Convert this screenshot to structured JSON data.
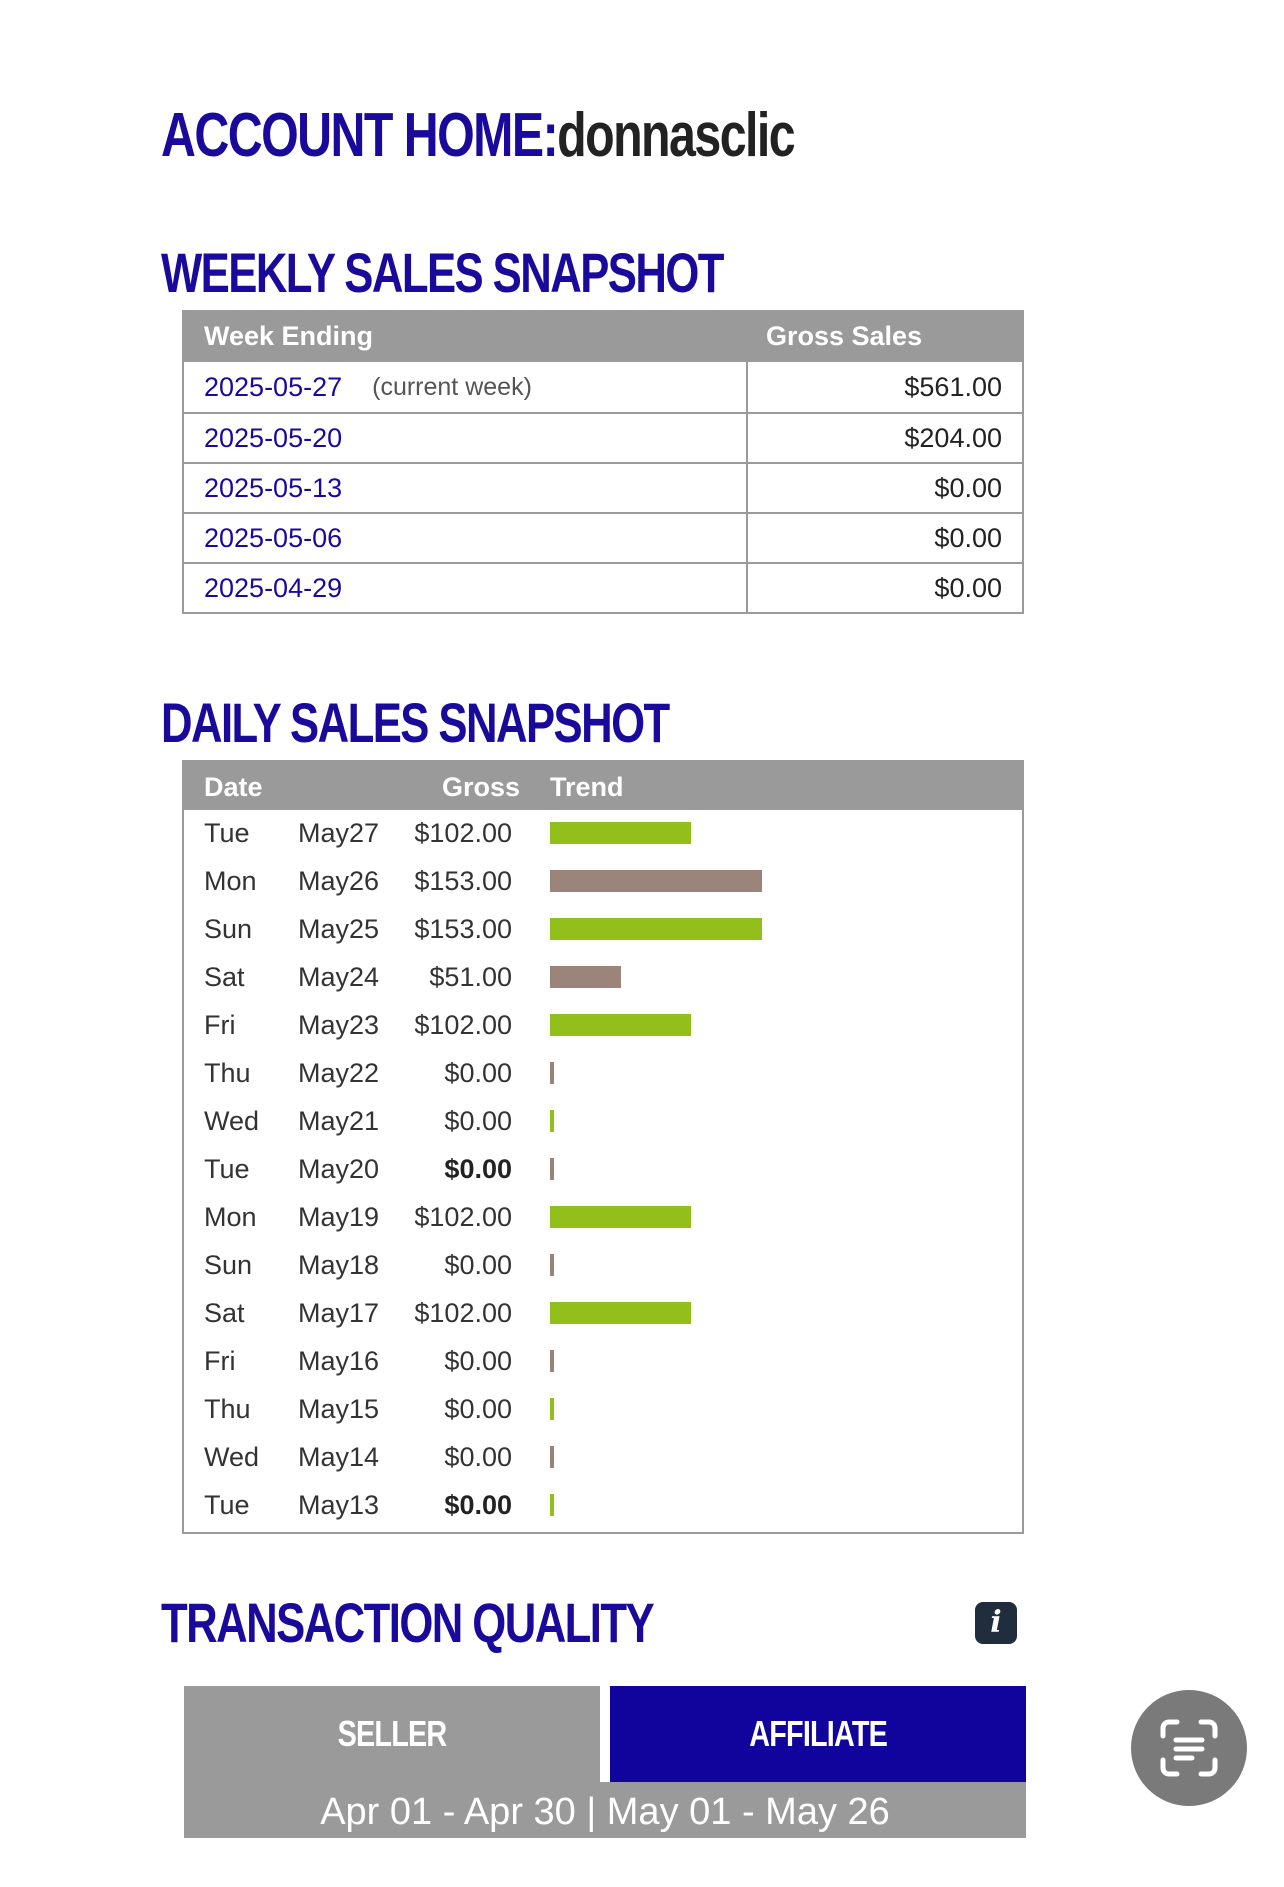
{
  "account": {
    "title_prefix": "ACCOUNT HOME:",
    "username": "donnasclic"
  },
  "weekly": {
    "heading": "WEEKLY SALES SNAPSHOT",
    "col_week": "Week Ending",
    "col_gross": "Gross Sales",
    "rows": [
      {
        "date": "2025-05-27",
        "note": "(current week)",
        "gross": "$561.00"
      },
      {
        "date": "2025-05-20",
        "note": "",
        "gross": "$204.00"
      },
      {
        "date": "2025-05-13",
        "note": "",
        "gross": "$0.00"
      },
      {
        "date": "2025-05-06",
        "note": "",
        "gross": "$0.00"
      },
      {
        "date": "2025-04-29",
        "note": "",
        "gross": "$0.00"
      }
    ]
  },
  "daily": {
    "heading": "DAILY SALES SNAPSHOT",
    "col_date": "Date",
    "col_gross": "Gross",
    "col_trend": "Trend",
    "trend_max": 153,
    "colors": {
      "green": "#93bf1b",
      "taupe": "#9b857a"
    },
    "rows": [
      {
        "dow": "Tue",
        "md": "May27",
        "gross": "$102.00",
        "value": 102,
        "color": "green",
        "bold": false
      },
      {
        "dow": "Mon",
        "md": "May26",
        "gross": "$153.00",
        "value": 153,
        "color": "taupe",
        "bold": false
      },
      {
        "dow": "Sun",
        "md": "May25",
        "gross": "$153.00",
        "value": 153,
        "color": "green",
        "bold": false
      },
      {
        "dow": "Sat",
        "md": "May24",
        "gross": "$51.00",
        "value": 51,
        "color": "taupe",
        "bold": false
      },
      {
        "dow": "Fri",
        "md": "May23",
        "gross": "$102.00",
        "value": 102,
        "color": "green",
        "bold": false
      },
      {
        "dow": "Thu",
        "md": "May22",
        "gross": "$0.00",
        "value": 0,
        "color": "taupe",
        "bold": false
      },
      {
        "dow": "Wed",
        "md": "May21",
        "gross": "$0.00",
        "value": 0,
        "color": "green",
        "bold": false
      },
      {
        "dow": "Tue",
        "md": "May20",
        "gross": "$0.00",
        "value": 0,
        "color": "taupe",
        "bold": true
      },
      {
        "dow": "Mon",
        "md": "May19",
        "gross": "$102.00",
        "value": 102,
        "color": "green",
        "bold": false
      },
      {
        "dow": "Sun",
        "md": "May18",
        "gross": "$0.00",
        "value": 0,
        "color": "taupe",
        "bold": false
      },
      {
        "dow": "Sat",
        "md": "May17",
        "gross": "$102.00",
        "value": 102,
        "color": "green",
        "bold": false
      },
      {
        "dow": "Fri",
        "md": "May16",
        "gross": "$0.00",
        "value": 0,
        "color": "taupe",
        "bold": false
      },
      {
        "dow": "Thu",
        "md": "May15",
        "gross": "$0.00",
        "value": 0,
        "color": "green",
        "bold": false
      },
      {
        "dow": "Wed",
        "md": "May14",
        "gross": "$0.00",
        "value": 0,
        "color": "taupe",
        "bold": false
      },
      {
        "dow": "Tue",
        "md": "May13",
        "gross": "$0.00",
        "value": 0,
        "color": "green",
        "bold": true
      }
    ]
  },
  "quality": {
    "heading": "TRANSACTION QUALITY",
    "info_icon": "info-icon",
    "tab_seller": "SELLER",
    "tab_affiliate": "AFFILIATE",
    "period": "Apr 01 - Apr 30 | May 01 - May 26"
  },
  "lens_button_icon": "text-scan-icon"
}
